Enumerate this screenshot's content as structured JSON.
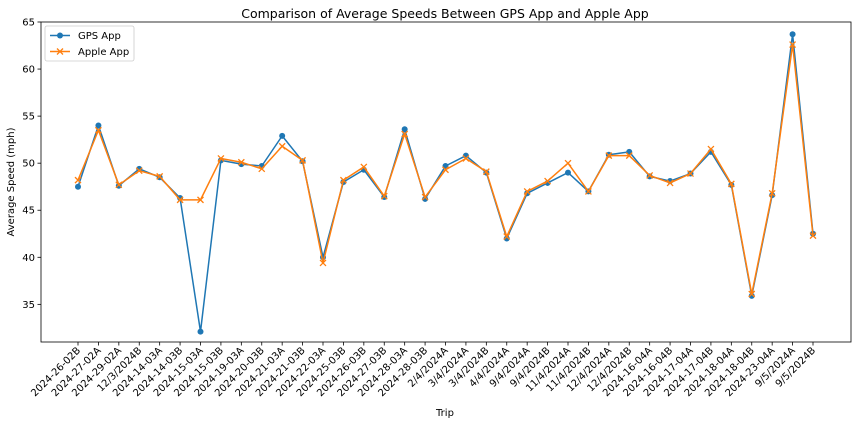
{
  "chart_data": {
    "type": "line",
    "title": "Comparison of Average Speeds Between GPS App and Apple App",
    "xlabel": "Trip",
    "ylabel": "Average Speed (mph)",
    "ylim": [
      31,
      65
    ],
    "yticks": [
      35,
      40,
      45,
      50,
      55,
      60,
      65
    ],
    "grid": false,
    "legend_position": "top-left",
    "categories": [
      "2024-26-02B",
      "2024-27-02A",
      "2024-29-02A",
      "12/3/2024B",
      "2024-14-03A",
      "2024-14-03B",
      "2024-15-03A",
      "2024-15-03B",
      "2024-19-03A",
      "2024-20-03B",
      "2024-21-03A",
      "2024-21-03B",
      "2024-22-03A",
      "2024-25-03B",
      "2024-26-03B",
      "2024-27-03B",
      "2024-28-03A",
      "2024-28-03B",
      "2/4/2024A",
      "3/4/2024A",
      "3/4/2024B",
      "4/4/2024A",
      "9/4/2024A",
      "9/4/2024B",
      "11/4/2024A",
      "11/4/2024B",
      "12/4/2024A",
      "12/4/2024B",
      "2024-16-04A",
      "2024-16-04B",
      "2024-17-04A",
      "2024-17-04B",
      "2024-18-04A",
      "2024-18-04B",
      "2024-23-04A",
      "9/5/2024A",
      "9/5/2024B"
    ],
    "series": [
      {
        "name": "GPS App",
        "color": "#1f77b4",
        "marker": "circle",
        "values": [
          47.5,
          54.0,
          47.6,
          49.4,
          48.5,
          46.3,
          32.1,
          50.3,
          49.9,
          49.7,
          52.9,
          50.2,
          40.0,
          48.0,
          49.3,
          46.4,
          53.6,
          46.2,
          49.7,
          50.8,
          49.0,
          42.0,
          46.8,
          47.9,
          49.0,
          47.0,
          50.9,
          51.2,
          48.6,
          48.1,
          48.9,
          51.2,
          47.7,
          35.9,
          46.6,
          63.7,
          42.5
        ]
      },
      {
        "name": "Apple App",
        "color": "#ff7f0e",
        "marker": "x",
        "values": [
          48.2,
          53.5,
          47.7,
          49.2,
          48.6,
          46.1,
          46.1,
          50.5,
          50.1,
          49.4,
          51.8,
          50.3,
          39.4,
          48.2,
          49.6,
          46.5,
          53.1,
          46.4,
          49.3,
          50.5,
          49.1,
          42.2,
          47.0,
          48.1,
          50.0,
          47.0,
          50.8,
          50.8,
          48.7,
          47.9,
          48.9,
          51.5,
          47.8,
          36.1,
          46.8,
          62.6,
          42.3
        ]
      }
    ]
  }
}
